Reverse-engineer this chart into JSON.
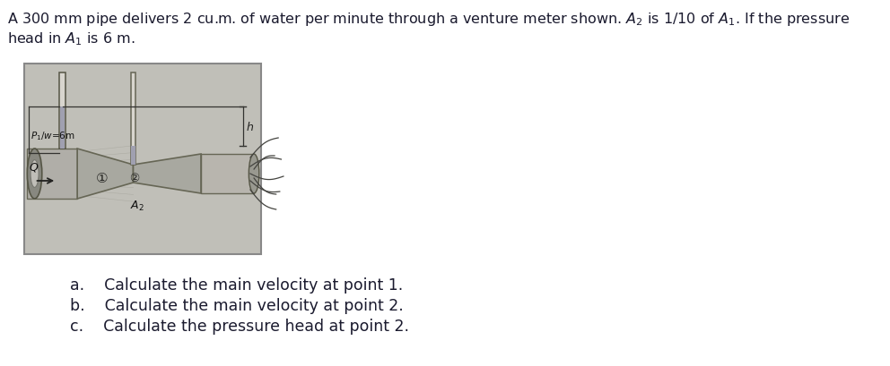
{
  "title_line1": "A 300 mm pipe delivers 2 cu.m. of water per minute through a venture meter shown. $A_2$ is 1/10 of $A_1$. If the pressure",
  "title_line2": "head in $A_1$ is 6 m.",
  "questions": [
    "a.    Calculate the main velocity at point 1.",
    "b.    Calculate the main velocity at point 2.",
    "c.    Calculate the pressure head at point 2."
  ],
  "bg_color": "#ffffff",
  "text_color": "#1a1a2e",
  "image_bg": "#c8c8c0",
  "title_fontsize": 11.5,
  "question_fontsize": 12.5
}
